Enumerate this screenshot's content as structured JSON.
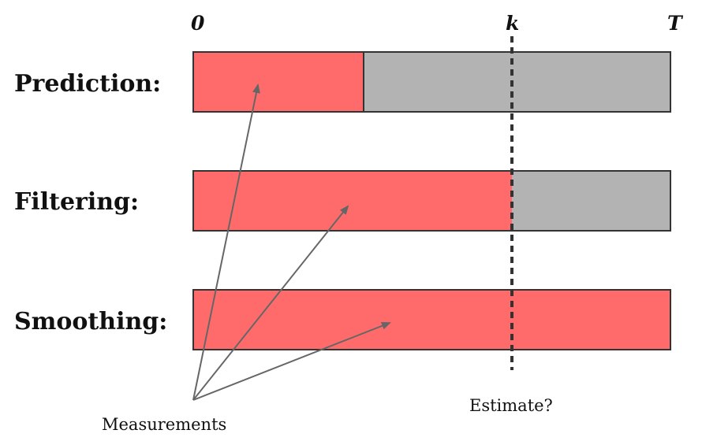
{
  "timeline": {
    "start_label": "0",
    "current_label": "k",
    "end_label": "T"
  },
  "rows": [
    {
      "id": "prediction",
      "label": "Prediction:",
      "measured_until": "mid"
    },
    {
      "id": "filtering",
      "label": "Filtering:",
      "measured_until": "k"
    },
    {
      "id": "smoothing",
      "label": "Smoothing:",
      "measured_until": "T"
    }
  ],
  "annotations": {
    "measurements_label": "Measurements",
    "estimate_label": "Estimate?"
  },
  "colors": {
    "measured": "#ff6b6b",
    "unmeasured": "#b3b3b3",
    "border": "#333333",
    "arrow": "#666666",
    "marker_line": "#333333"
  }
}
